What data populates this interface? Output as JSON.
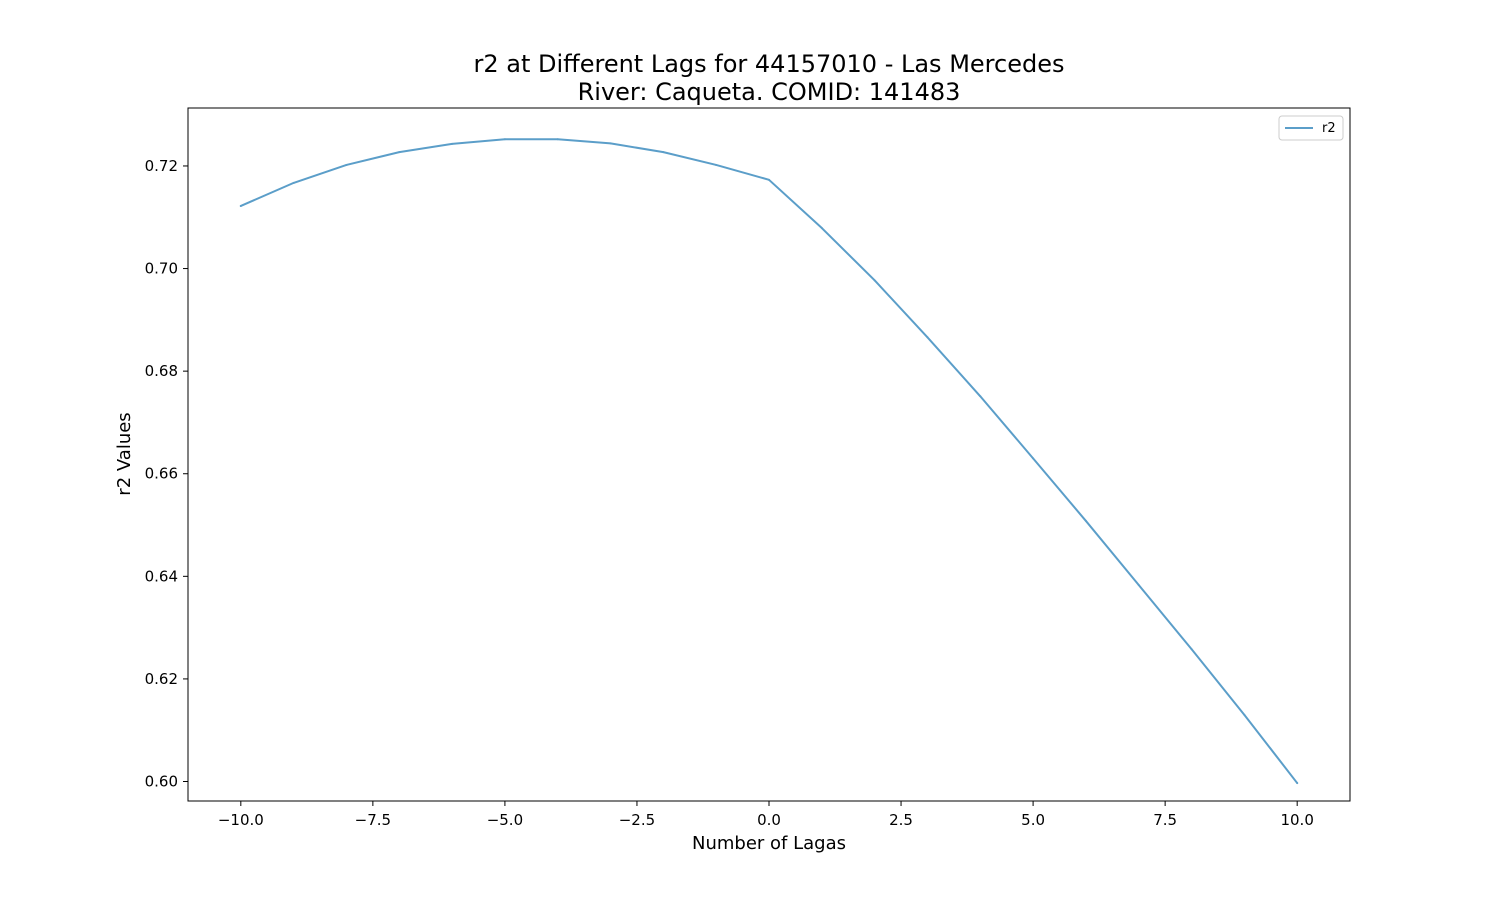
{
  "chart_data": {
    "type": "line",
    "title": "r2 at Different Lags for 44157010 - Las Mercedes",
    "subtitle": "River: Caqueta. COMID: 141483",
    "xlabel": "Number of Lagas",
    "ylabel": "r2 Values",
    "xlim": [
      -11,
      11
    ],
    "ylim": [
      0.5962,
      0.7313
    ],
    "xticks": [
      -10.0,
      -7.5,
      -5.0,
      -2.5,
      0.0,
      2.5,
      5.0,
      7.5,
      10.0
    ],
    "xtick_labels": [
      "−10.0",
      "−7.5",
      "−5.0",
      "−2.5",
      "0.0",
      "2.5",
      "5.0",
      "7.5",
      "10.0"
    ],
    "yticks": [
      0.6,
      0.62,
      0.64,
      0.66,
      0.68,
      0.7,
      0.72
    ],
    "ytick_labels": [
      "0.60",
      "0.62",
      "0.64",
      "0.66",
      "0.68",
      "0.70",
      "0.72"
    ],
    "grid": false,
    "legend_position": "top-right",
    "series": [
      {
        "name": "r2",
        "color": "#5b9ec9",
        "x": [
          -10,
          -9,
          -8,
          -7,
          -6,
          -5,
          -4,
          -3,
          -2,
          -1,
          0,
          1,
          2,
          3,
          4,
          5,
          6,
          7,
          8,
          9,
          10
        ],
        "y": [
          0.7122,
          0.7167,
          0.7202,
          0.7227,
          0.7243,
          0.7252,
          0.7252,
          0.7244,
          0.7227,
          0.7202,
          0.7173,
          0.7079,
          0.6977,
          0.6866,
          0.6751,
          0.663,
          0.6508,
          0.6383,
          0.6258,
          0.613,
          0.5997
        ]
      }
    ]
  }
}
